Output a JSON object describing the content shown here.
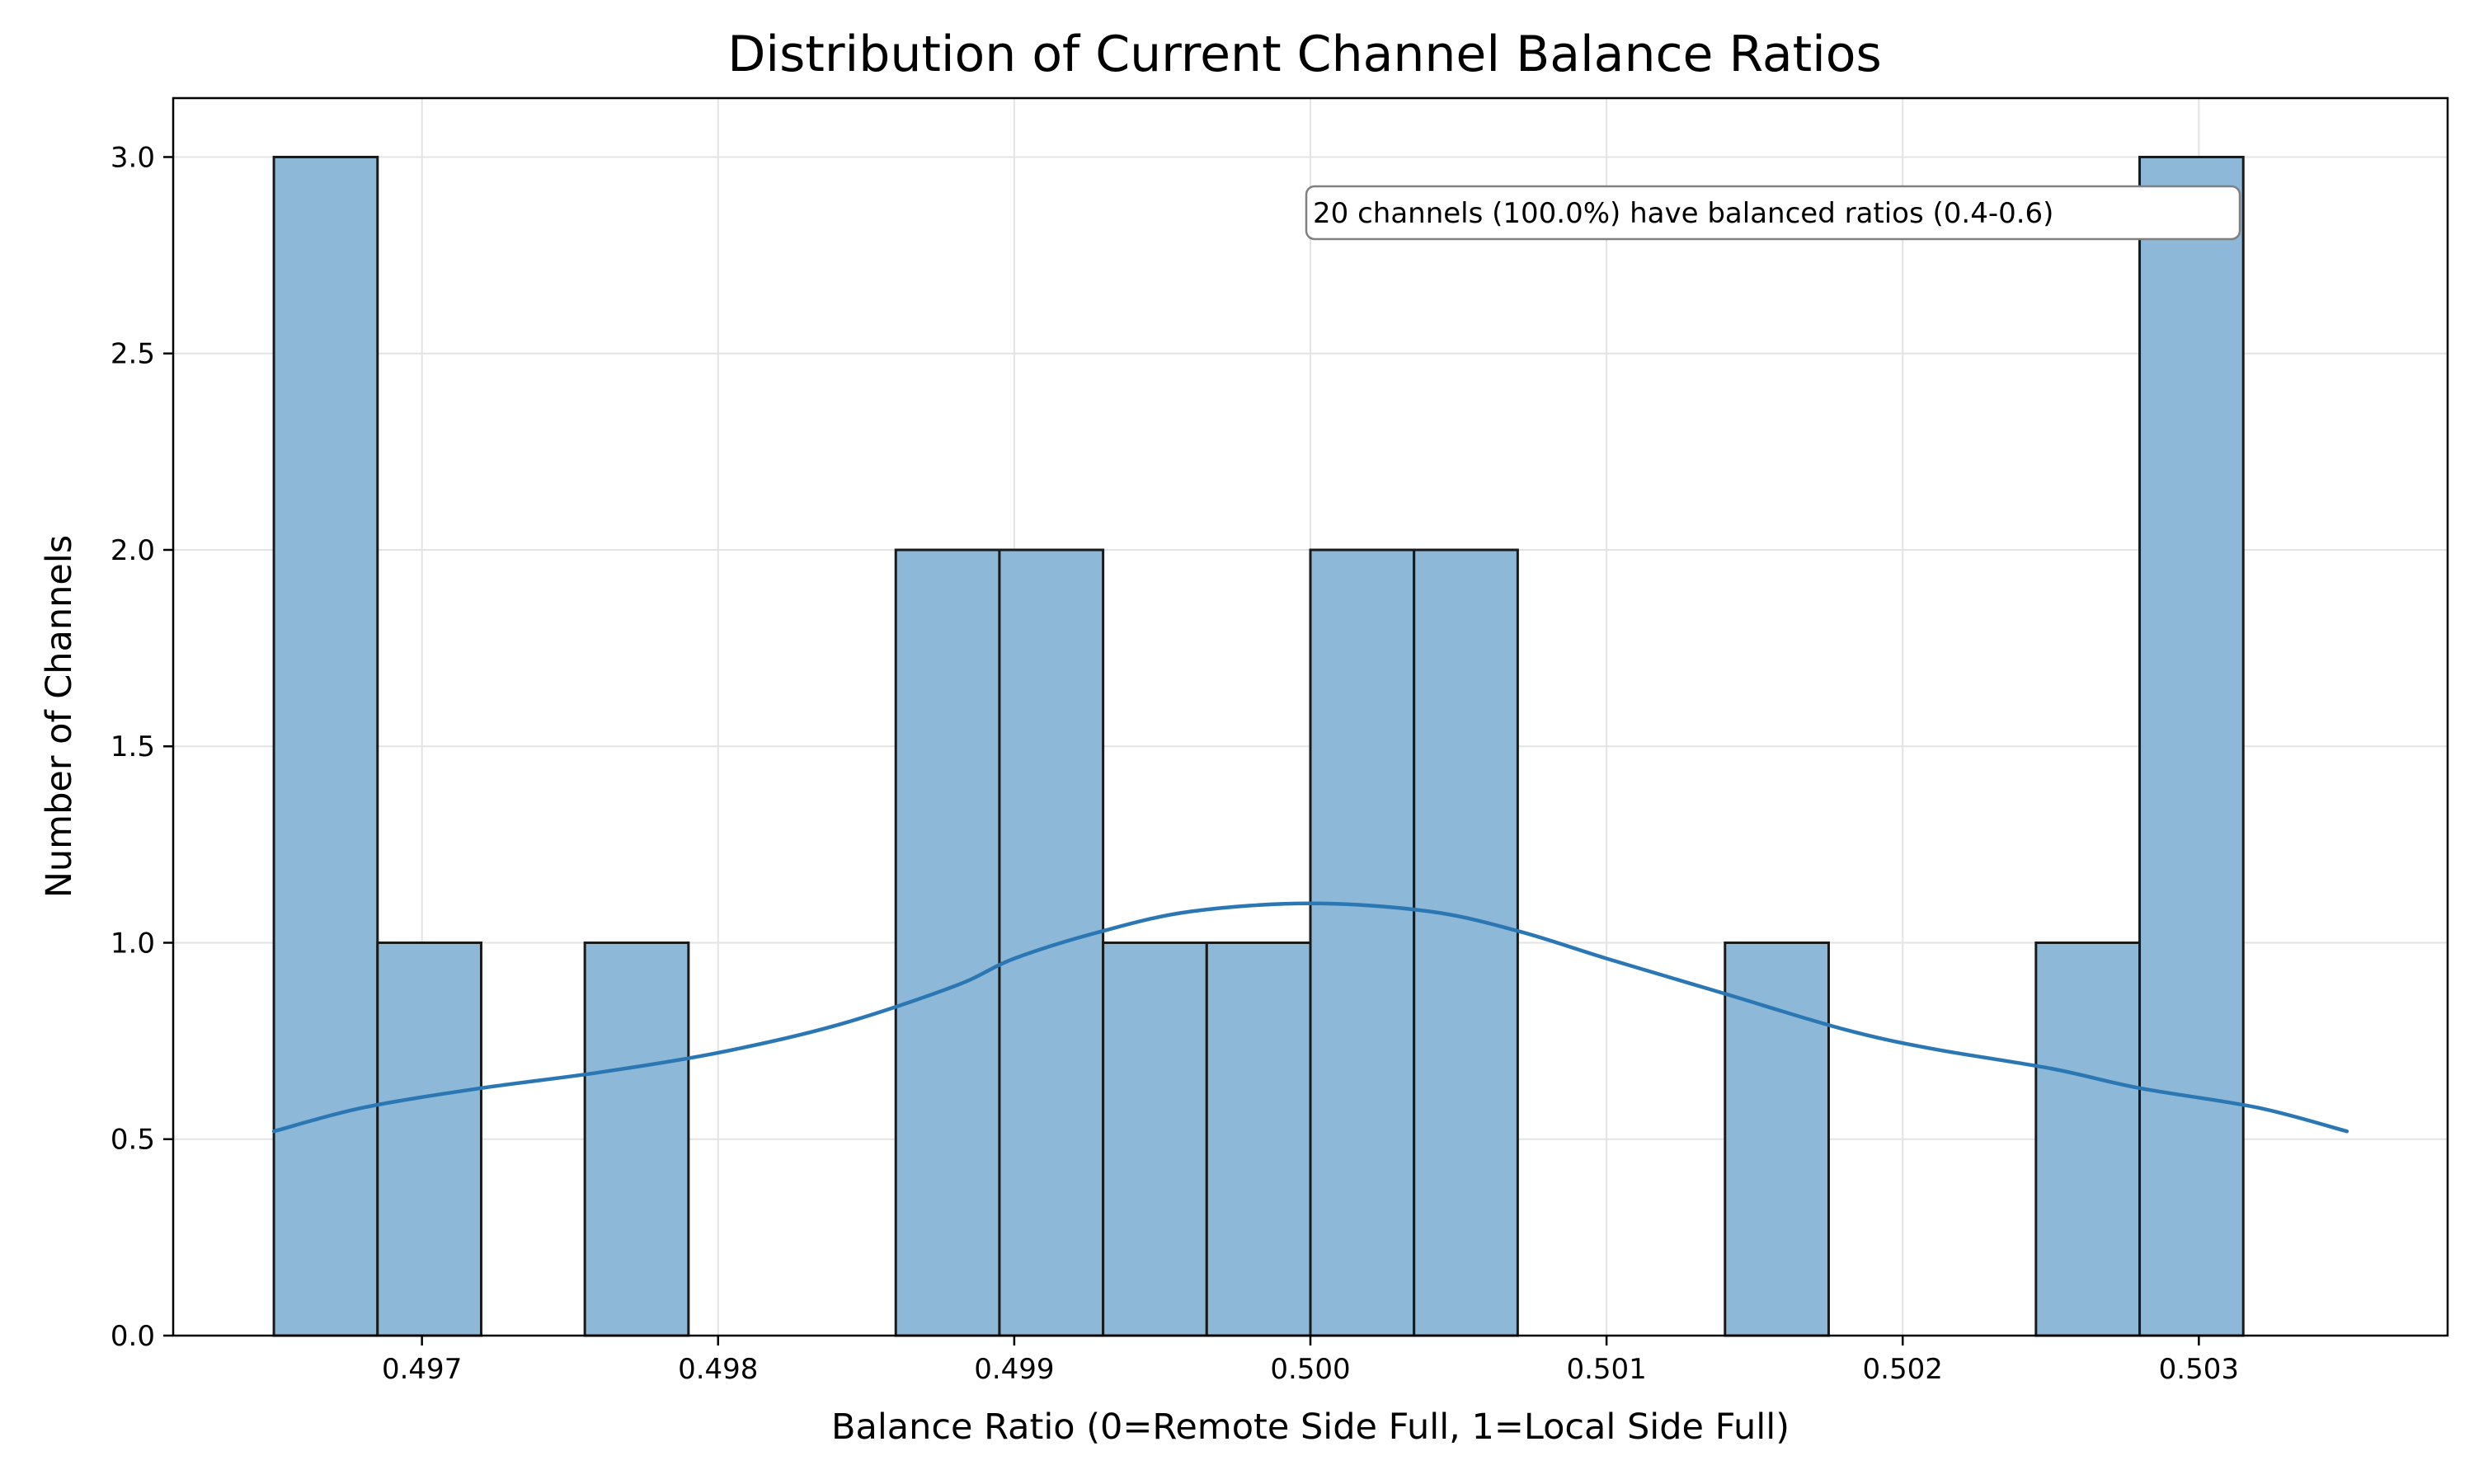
{
  "chart_data": {
    "type": "bar",
    "title": "Distribution of Current Channel Balance Ratios",
    "xlabel": "Balance Ratio (0=Remote Side Full, 1=Local Side Full)",
    "ylabel": "Number of Channels",
    "xlim": [
      0.49616,
      0.50384
    ],
    "ylim": [
      0,
      3.15
    ],
    "xticks": [
      {
        "value": 0.497,
        "label": "0.497"
      },
      {
        "value": 0.498,
        "label": "0.498"
      },
      {
        "value": 0.499,
        "label": "0.499"
      },
      {
        "value": 0.5,
        "label": "0.500"
      },
      {
        "value": 0.501,
        "label": "0.501"
      },
      {
        "value": 0.502,
        "label": "0.502"
      },
      {
        "value": 0.503,
        "label": "0.503"
      }
    ],
    "yticks": [
      {
        "value": 0.0,
        "label": "0.0"
      },
      {
        "value": 0.5,
        "label": "0.5"
      },
      {
        "value": 1.0,
        "label": "1.0"
      },
      {
        "value": 1.5,
        "label": "1.5"
      },
      {
        "value": 2.0,
        "label": "2.0"
      },
      {
        "value": 2.5,
        "label": "2.5"
      },
      {
        "value": 3.0,
        "label": "3.0"
      }
    ],
    "grid": true,
    "bin_edges": [
      0.4965,
      0.49685,
      0.4972,
      0.49755,
      0.4979,
      0.49825,
      0.4986,
      0.49895,
      0.4993,
      0.49965,
      0.5,
      0.50035,
      0.5007,
      0.50105,
      0.5014,
      0.50175,
      0.5021,
      0.50245,
      0.5028,
      0.50315,
      0.5035
    ],
    "counts": [
      3,
      1,
      0,
      1,
      0,
      0,
      2,
      2,
      1,
      1,
      2,
      2,
      0,
      0,
      1,
      0,
      0,
      1,
      3,
      0
    ],
    "kde": {
      "x": [
        0.4965,
        0.4968,
        0.4972,
        0.4976,
        0.498,
        0.4984,
        0.4988,
        0.499,
        0.4993,
        0.4996,
        0.5,
        0.5004,
        0.5007,
        0.501,
        0.5014,
        0.5018,
        0.5021,
        0.5025,
        0.5028,
        0.5032,
        0.5035
      ],
      "y": [
        0.52,
        0.58,
        0.63,
        0.67,
        0.72,
        0.79,
        0.89,
        0.96,
        1.03,
        1.08,
        1.1,
        1.08,
        1.03,
        0.96,
        0.87,
        0.78,
        0.73,
        0.68,
        0.63,
        0.58,
        0.52
      ]
    },
    "colors": {
      "bar_fill": "#8db8d8",
      "bar_edge": "#1a1a1a",
      "kde_line": "#2a77b4",
      "grid": "#e3e3e3"
    },
    "annotation": "20 channels (100.0%) have balanced ratios (0.4-0.6)"
  }
}
